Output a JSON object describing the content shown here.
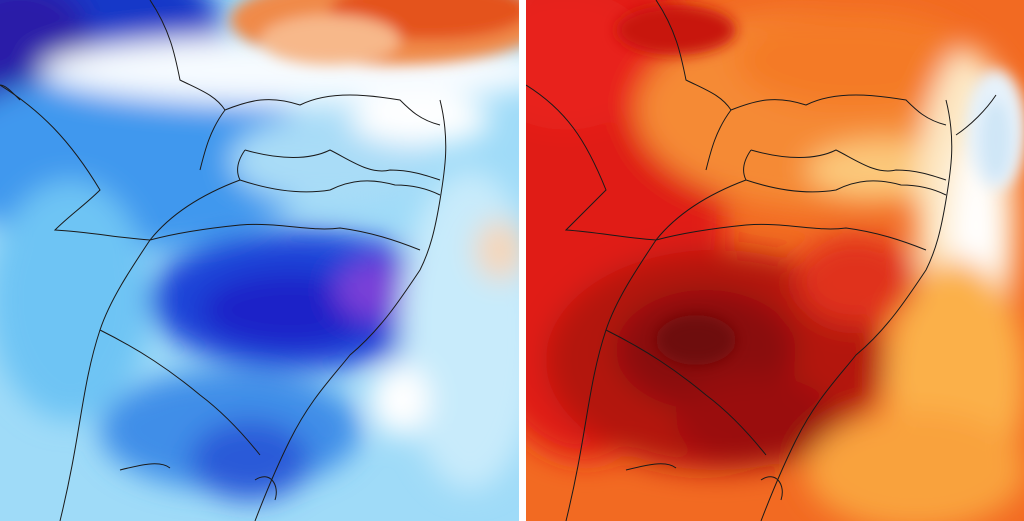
{
  "panels": [
    {
      "id": "cold-anomaly",
      "palette": [
        "#0a1aa8",
        "#1f44d8",
        "#2f7ef0",
        "#4fb0f4",
        "#8fd3f7",
        "#c8ebfb",
        "#ffffff",
        "#f6c9a0",
        "#f2894a",
        "#e8531f"
      ],
      "accent_magenta": "#8a3ad8"
    },
    {
      "id": "warm-anomaly",
      "palette": [
        "#7a0a0a",
        "#b3140f",
        "#e0201a",
        "#f24a1c",
        "#f7782a",
        "#fba23c",
        "#fcc76a",
        "#fde2a8",
        "#ffffff",
        "#cfe8f7"
      ]
    }
  ],
  "map": {
    "boundary_color": "#1a1a1a",
    "subject": "southern-brazil-regional-field"
  }
}
